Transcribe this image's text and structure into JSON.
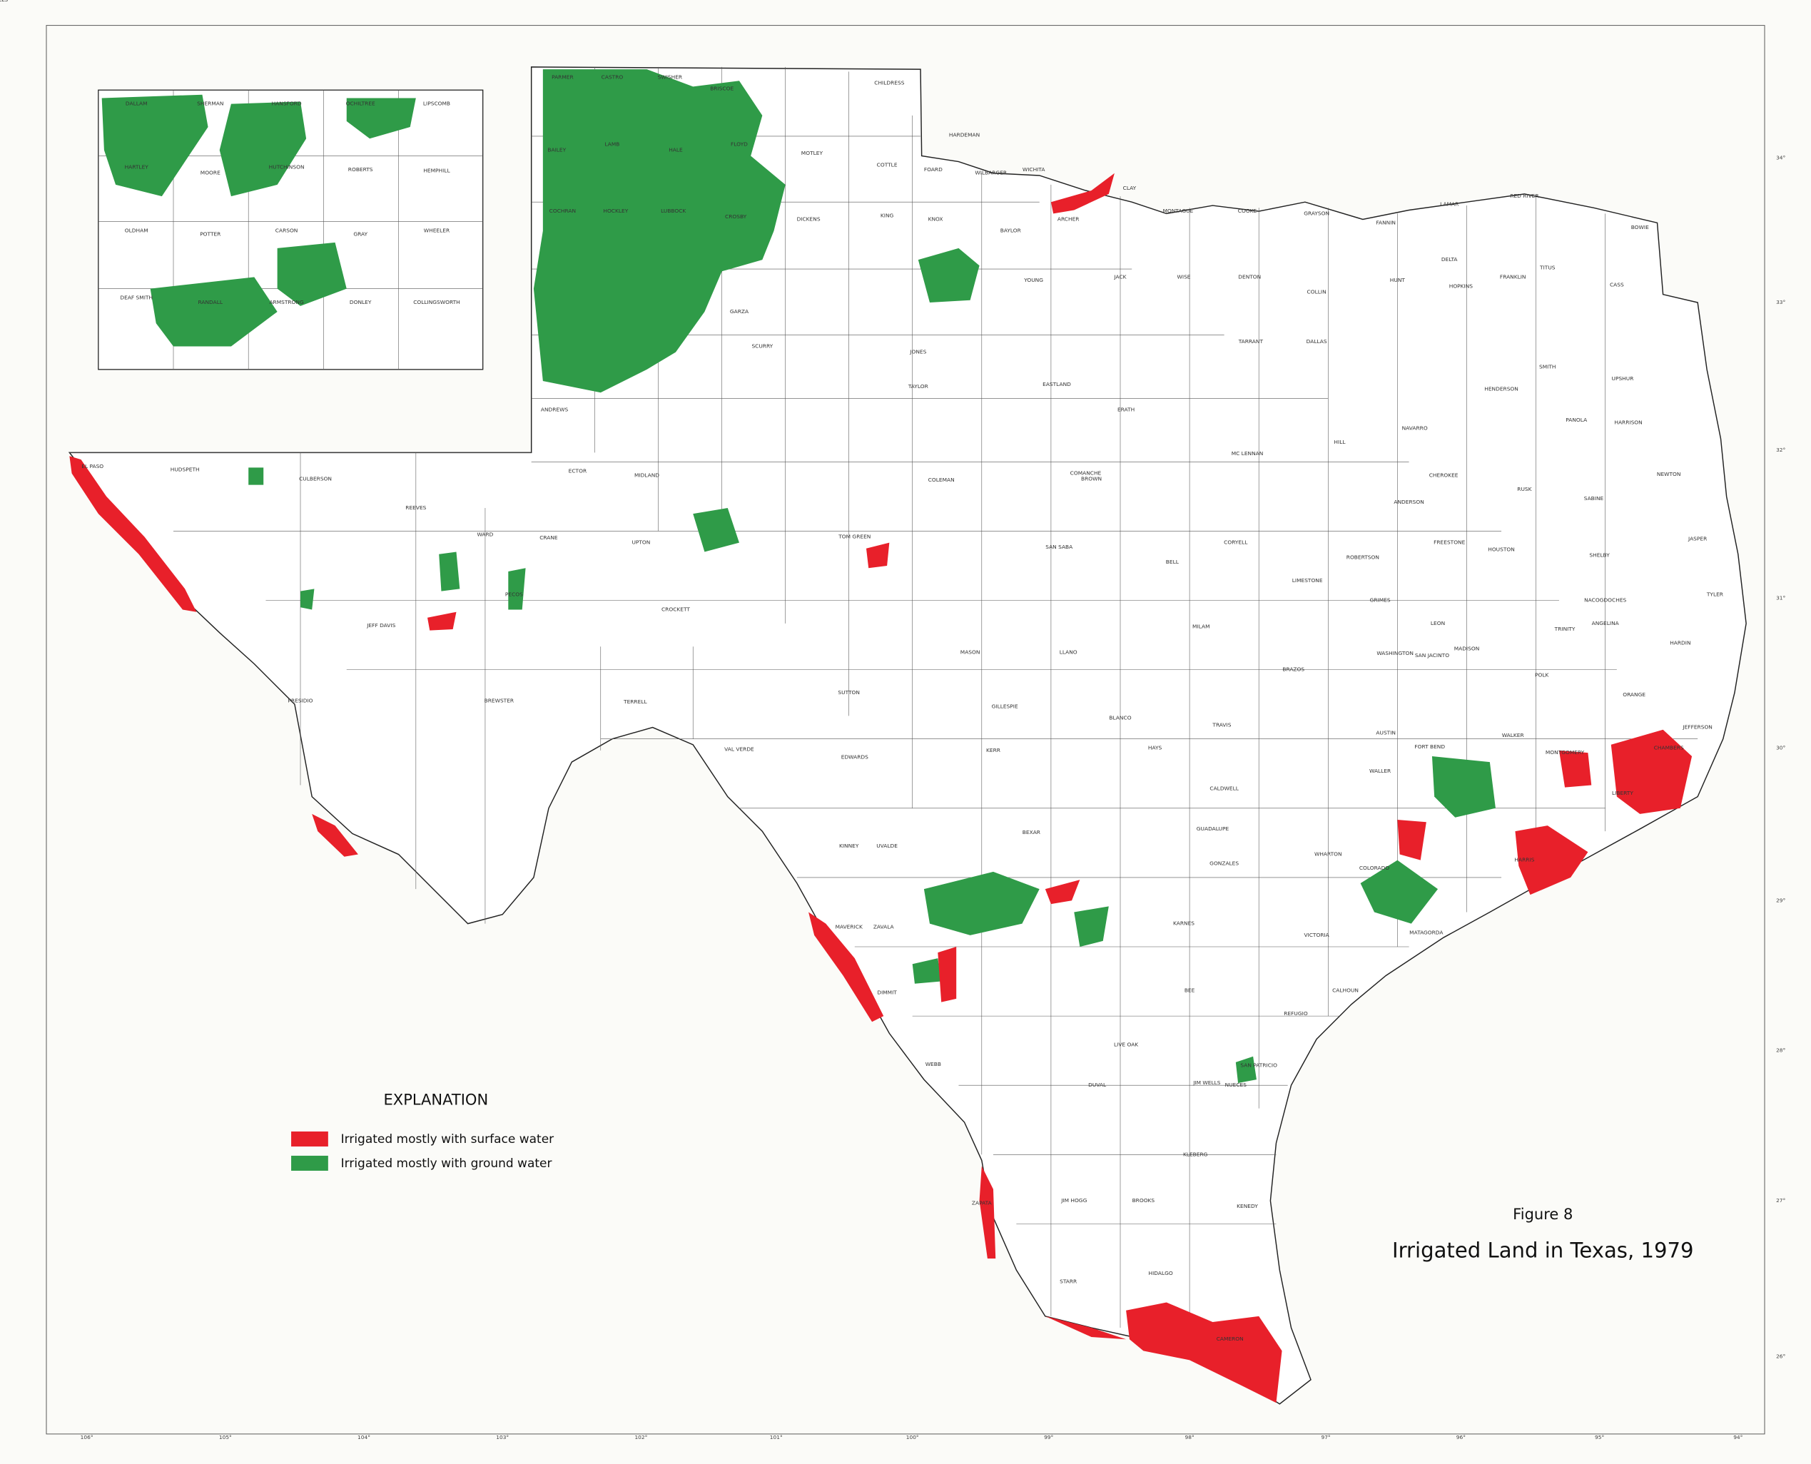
{
  "map": {
    "figure_label": "Figure 8",
    "title": "Irrigated Land in Texas, 1979",
    "legend": {
      "title": "EXPLANATION",
      "items": [
        {
          "label": "Irrigated mostly with surface water",
          "color": "#e8202a"
        },
        {
          "label": "Irrigated mostly with ground water",
          "color": "#2f9b48"
        }
      ]
    },
    "longitude_labels": [
      "106°",
      "105°",
      "104°",
      "103°",
      "102°",
      "101°",
      "100°",
      "99°",
      "98°",
      "97°",
      "96°",
      "95°",
      "94°"
    ],
    "latitude_labels": [
      "34°",
      "33°",
      "32°",
      "31°",
      "30°",
      "29°",
      "28°",
      "27°",
      "26°"
    ],
    "counties": [
      "PARMER",
      "CASTRO",
      "SWISHER",
      "BRISCOE",
      "CHILDRESS",
      "HARDEMAN",
      "WICHITA",
      "CLAY",
      "BAILEY",
      "LAMB",
      "HALE",
      "FLOYD",
      "MOTLEY",
      "COTTLE",
      "FOARD",
      "WILBARGER",
      "ARCHER",
      "MONTAGUE",
      "COOKE",
      "GRAYSON",
      "FANNIN",
      "LAMAR",
      "RED RIVER",
      "BOWIE",
      "COCHRAN",
      "HOCKLEY",
      "LUBBOCK",
      "CROSBY",
      "DICKENS",
      "KING",
      "KNOX",
      "BAYLOR",
      "YOUNG",
      "JACK",
      "WISE",
      "DENTON",
      "COLLIN",
      "HUNT",
      "DELTA",
      "HOPKINS",
      "FRANKLIN",
      "TITUS",
      "CASS",
      "EL PASO",
      "HUDSPETH",
      "CULBERSON",
      "REEVES",
      "WARD",
      "CRANE",
      "UPTON",
      "PECOS",
      "JEFF DAVIS",
      "PRESIDIO",
      "BREWSTER",
      "TERRELL",
      "VAL VERDE",
      "CROCKETT",
      "SUTTON",
      "EDWARDS",
      "KINNEY",
      "UVALDE",
      "MAVERICK",
      "ZAVALA",
      "DIMMIT",
      "WEBB",
      "ZAPATA",
      "JIM HOGG",
      "STARR",
      "HIDALGO",
      "CAMERON",
      "BEXAR",
      "TRAVIS",
      "HARRIS",
      "HOUSTON",
      "DALLAS",
      "TARRANT",
      "TOM GREEN",
      "MIDLAND",
      "ECTOR",
      "ANDREWS",
      "GARZA",
      "SCURRY",
      "TAYLOR",
      "JONES",
      "EASTLAND",
      "ERATH",
      "COMANCHE",
      "BROWN",
      "COLEMAN",
      "SAN SABA",
      "LLANO",
      "MASON",
      "KERR",
      "GILLESPIE",
      "BLANCO",
      "HAYS",
      "CALDWELL",
      "GUADALUPE",
      "GONZALES",
      "KARNES",
      "BEE",
      "LIVE OAK",
      "NUECES",
      "KLEBERG",
      "BROOKS",
      "KENEDY",
      "DUVAL",
      "JIM WELLS",
      "SAN PATRICIO",
      "REFUGIO",
      "VICTORIA",
      "CALHOUN",
      "MATAGORDA",
      "WHARTON",
      "COLORADO",
      "FORT BEND",
      "WALLER",
      "AUSTIN",
      "WASHINGTON",
      "BRAZOS",
      "MILAM",
      "BELL",
      "CORYELL",
      "MC LENNAN",
      "HILL",
      "NAVARRO",
      "HENDERSON",
      "SMITH",
      "UPSHUR",
      "HARRISON",
      "PANOLA",
      "RUSK",
      "CHEROKEE",
      "ANDERSON",
      "FREESTONE",
      "LEON",
      "MADISON",
      "WALKER",
      "MONTGOMERY",
      "LIBERTY",
      "CHAMBERS",
      "JEFFERSON",
      "ORANGE",
      "HARDIN",
      "TYLER",
      "JASPER",
      "NEWTON",
      "SABINE",
      "SHELBY",
      "NACOGDOCHES",
      "ANGELINA",
      "TRINITY",
      "POLK",
      "SAN JACINTO",
      "GRIMES",
      "ROBERTSON",
      "LIMESTONE",
      "FALLS"
    ],
    "inset_counties": [
      "DALLAM",
      "SHERMAN",
      "HANSFORD",
      "OCHILTREE",
      "LIPSCOMB",
      "HARTLEY",
      "MOORE",
      "HUTCHINSON",
      "ROBERTS",
      "HEMPHILL",
      "OLDHAM",
      "POTTER",
      "CARSON",
      "GRAY",
      "WHEELER",
      "DEAF SMITH",
      "RANDALL",
      "ARMSTRONG",
      "DONLEY",
      "COLLINGSWORTH"
    ]
  }
}
